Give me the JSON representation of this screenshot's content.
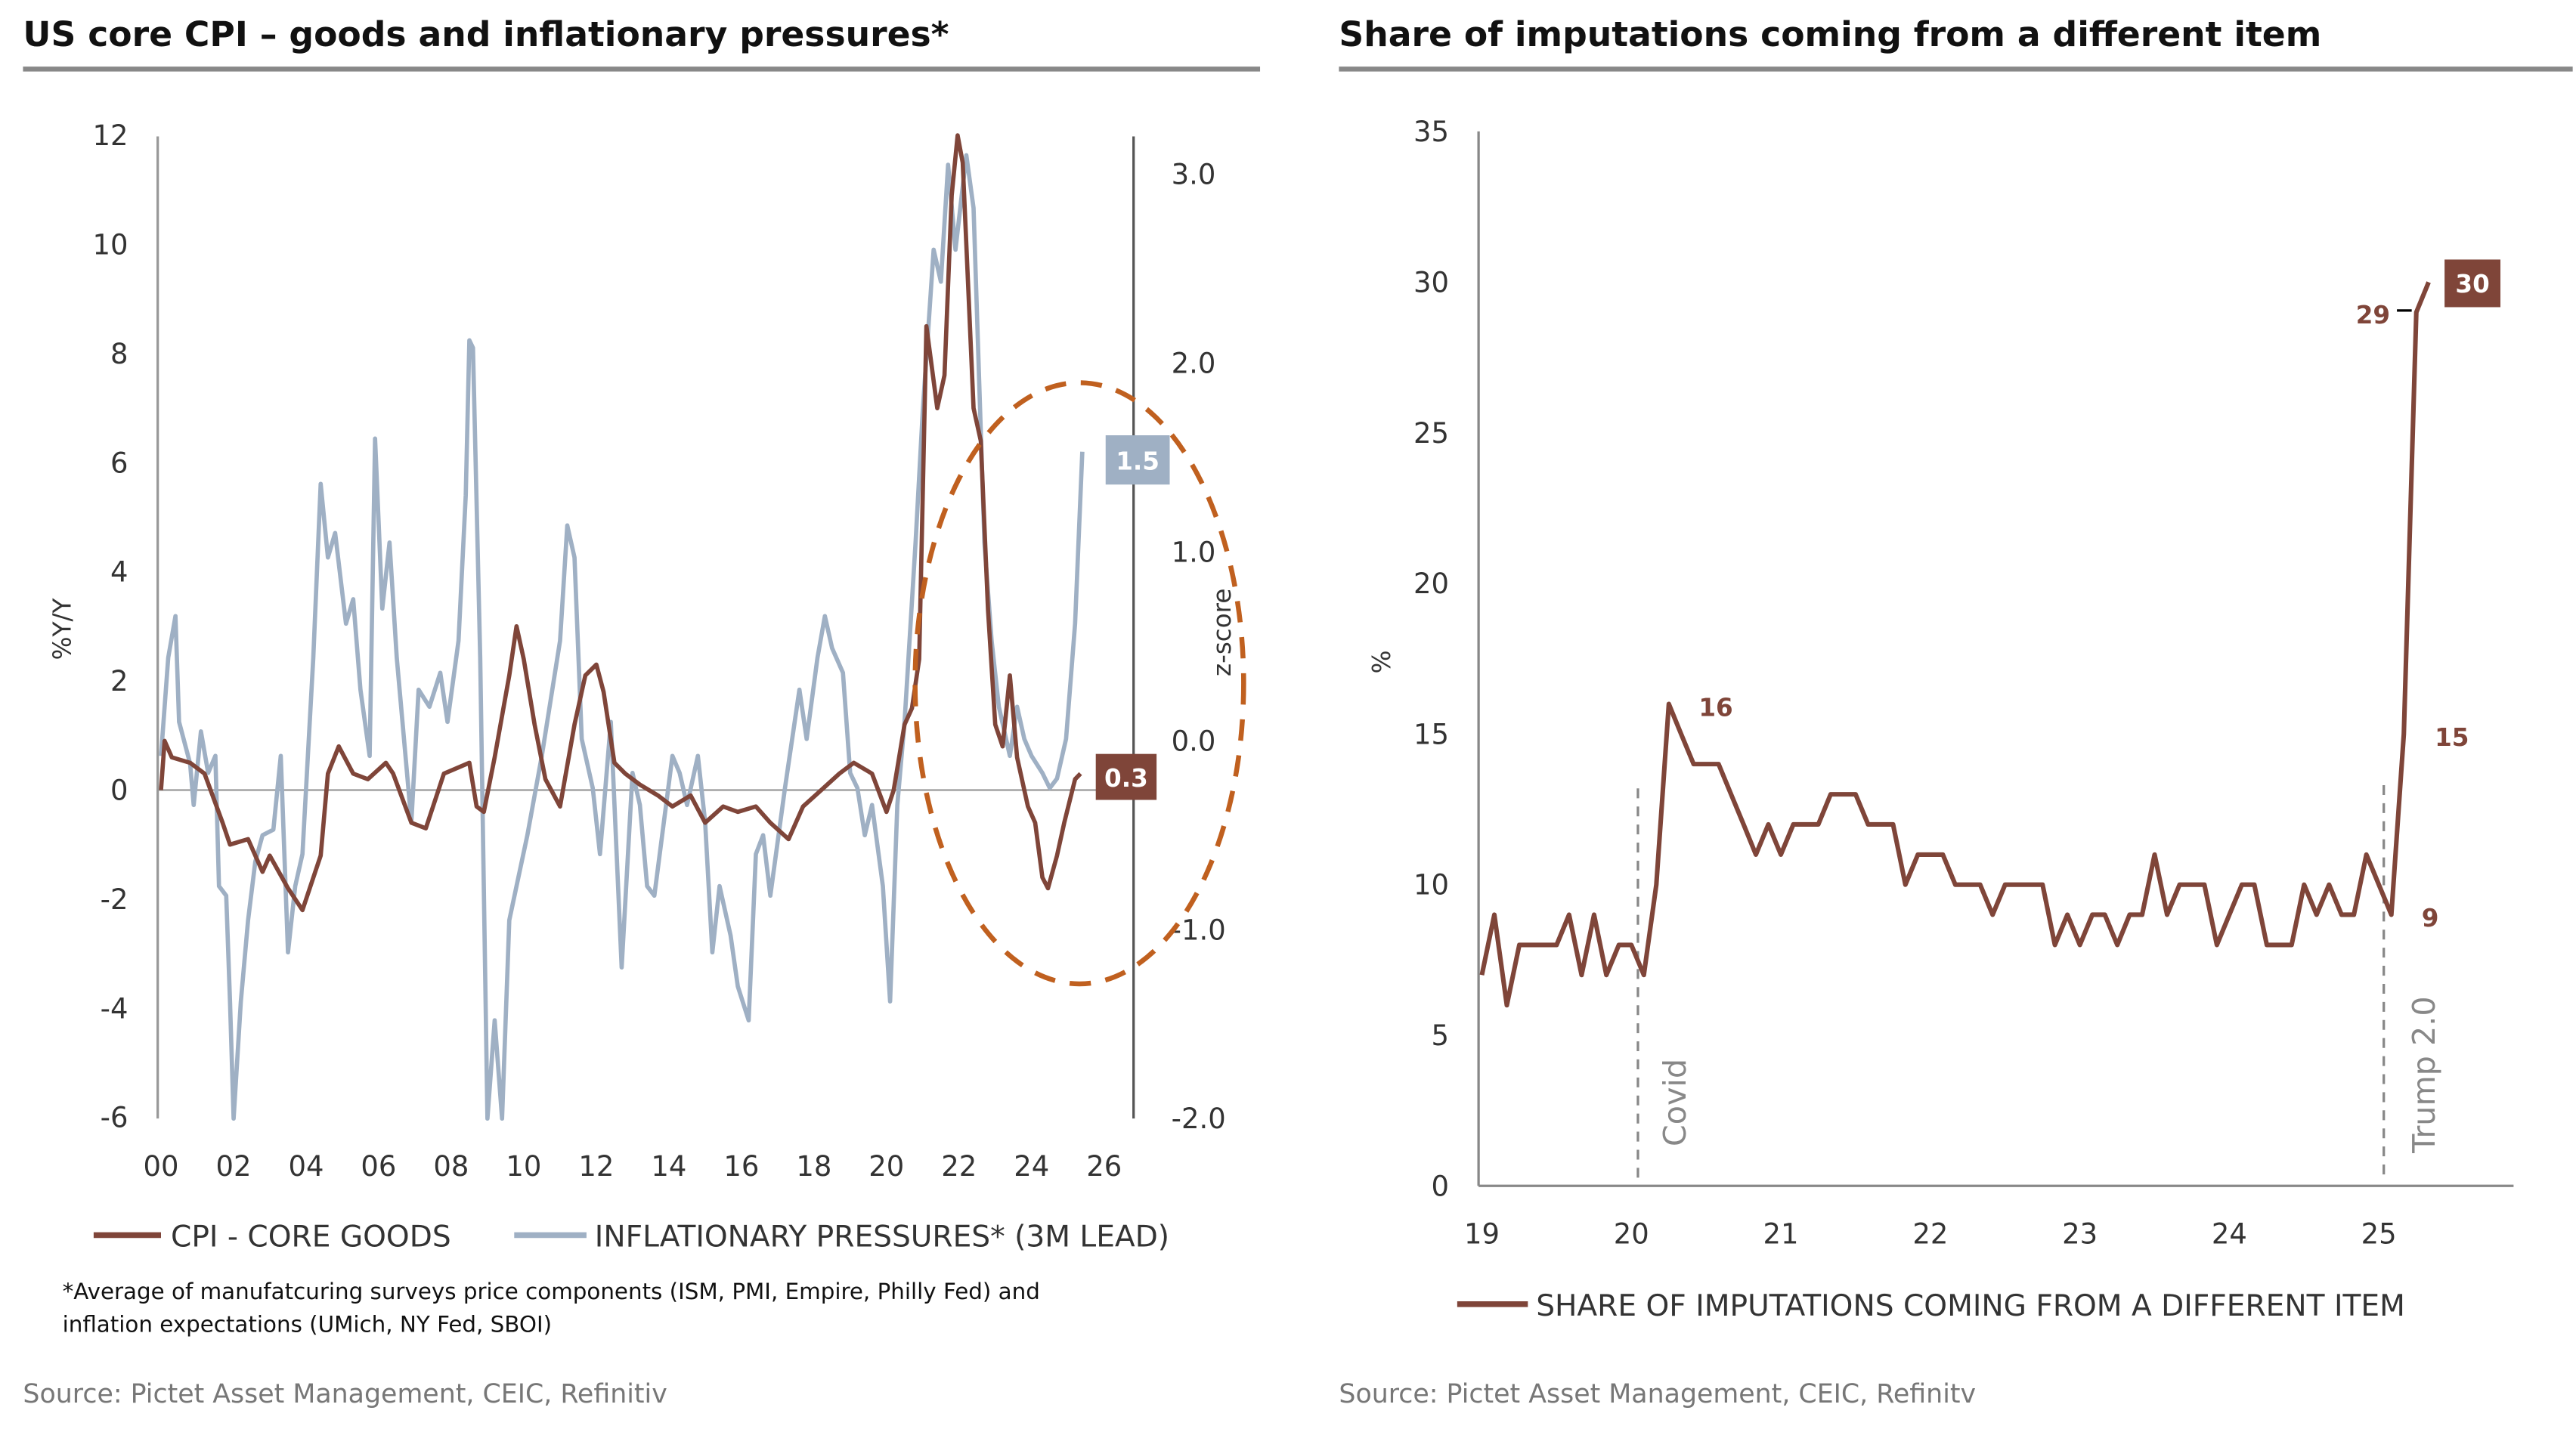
{
  "colors": {
    "cpi": "#7f4539",
    "pressures": "#9fb0c4",
    "highlight": "#c0601f",
    "axis": "#888888"
  },
  "chart_data": [
    {
      "type": "line",
      "title": "US core CPI – goods and inflationary pressures*",
      "ylabel": "%Y/Y",
      "y2label": "z-score",
      "xlim": [
        2000,
        2026.5
      ],
      "ylim": [
        -6,
        12
      ],
      "y2lim": [
        -2.0,
        3.2
      ],
      "xticks": [
        "00",
        "02",
        "04",
        "06",
        "08",
        "10",
        "12",
        "14",
        "16",
        "18",
        "20",
        "22",
        "24",
        "26"
      ],
      "yticks": [
        "12",
        "10",
        "8",
        "6",
        "4",
        "2",
        "0",
        "-2",
        "-4",
        "-6"
      ],
      "y2ticks": [
        "3.0",
        "2.0",
        "1.0",
        "0.0",
        "-1.0",
        "-2.0"
      ],
      "legend_position": "bottom",
      "series": [
        {
          "name": "CPI - CORE GOODS",
          "axis": "left",
          "last_label": "0.3",
          "points": [
            [
              2000.0,
              0
            ],
            [
              2000.1,
              0.9
            ],
            [
              2000.3,
              0.6
            ],
            [
              2000.8,
              0.5
            ],
            [
              2001.2,
              0.3
            ],
            [
              2001.7,
              -0.6
            ],
            [
              2001.9,
              -1
            ],
            [
              2002.4,
              -0.9
            ],
            [
              2002.8,
              -1.5
            ],
            [
              2003.0,
              -1.2
            ],
            [
              2003.5,
              -1.8
            ],
            [
              2003.9,
              -2.2
            ],
            [
              2004.4,
              -1.2
            ],
            [
              2004.6,
              0.3
            ],
            [
              2004.9,
              0.8
            ],
            [
              2005.3,
              0.3
            ],
            [
              2005.7,
              0.2
            ],
            [
              2006.2,
              0.5
            ],
            [
              2006.4,
              0.3
            ],
            [
              2006.9,
              -0.6
            ],
            [
              2007.3,
              -0.7
            ],
            [
              2007.8,
              0.3
            ],
            [
              2008.5,
              0.5
            ],
            [
              2008.7,
              -0.3
            ],
            [
              2008.9,
              -0.4
            ],
            [
              2009.2,
              0.6
            ],
            [
              2009.6,
              2.1
            ],
            [
              2009.8,
              3.0
            ],
            [
              2010.0,
              2.4
            ],
            [
              2010.3,
              1.2
            ],
            [
              2010.6,
              0.2
            ],
            [
              2011.0,
              -0.3
            ],
            [
              2011.4,
              1.2
            ],
            [
              2011.7,
              2.1
            ],
            [
              2012.0,
              2.3
            ],
            [
              2012.2,
              1.8
            ],
            [
              2012.5,
              0.5
            ],
            [
              2012.8,
              0.3
            ],
            [
              2013.2,
              0.1
            ],
            [
              2013.7,
              -0.1
            ],
            [
              2014.1,
              -0.3
            ],
            [
              2014.6,
              -0.1
            ],
            [
              2015.0,
              -0.6
            ],
            [
              2015.5,
              -0.3
            ],
            [
              2015.9,
              -0.4
            ],
            [
              2016.4,
              -0.3
            ],
            [
              2016.8,
              -0.6
            ],
            [
              2017.3,
              -0.9
            ],
            [
              2017.7,
              -0.3
            ],
            [
              2018.2,
              0
            ],
            [
              2018.7,
              0.3
            ],
            [
              2019.1,
              0.5
            ],
            [
              2019.6,
              0.3
            ],
            [
              2020.0,
              -0.4
            ],
            [
              2020.2,
              0
            ],
            [
              2020.5,
              1.2
            ],
            [
              2020.7,
              1.5
            ],
            [
              2020.9,
              2.4
            ],
            [
              2021.1,
              8.5
            ],
            [
              2021.4,
              7.0
            ],
            [
              2021.6,
              7.6
            ],
            [
              2021.8,
              10.9
            ],
            [
              2021.96,
              12
            ],
            [
              2022.1,
              11.5
            ],
            [
              2022.4,
              7.0
            ],
            [
              2022.6,
              6.4
            ],
            [
              2022.8,
              3.3
            ],
            [
              2023.0,
              1.2
            ],
            [
              2023.2,
              0.8
            ],
            [
              2023.4,
              2.1
            ],
            [
              2023.6,
              0.6
            ],
            [
              2023.9,
              -0.3
            ],
            [
              2024.1,
              -0.6
            ],
            [
              2024.3,
              -1.6
            ],
            [
              2024.45,
              -1.8
            ],
            [
              2024.7,
              -1.2
            ],
            [
              2024.9,
              -0.6
            ],
            [
              2025.2,
              0.2
            ],
            [
              2025.35,
              0.3
            ]
          ]
        },
        {
          "name": "INFLATIONARY PRESSURES* (3M LEAD)",
          "axis": "right",
          "last_label": "1.5",
          "points": [
            [
              2000.0,
              -0.08
            ],
            [
              2000.2,
              0.44
            ],
            [
              2000.4,
              0.66
            ],
            [
              2000.5,
              0.1
            ],
            [
              2000.8,
              -0.12
            ],
            [
              2000.9,
              -0.34
            ],
            [
              2001.1,
              0.05
            ],
            [
              2001.3,
              -0.17
            ],
            [
              2001.5,
              -0.08
            ],
            [
              2001.6,
              -0.77
            ],
            [
              2001.8,
              -0.82
            ],
            [
              2001.9,
              -1.38
            ],
            [
              2002.0,
              -2.0
            ],
            [
              2002.2,
              -1.38
            ],
            [
              2002.4,
              -0.95
            ],
            [
              2002.6,
              -0.64
            ],
            [
              2002.8,
              -0.5
            ],
            [
              2003.1,
              -0.47
            ],
            [
              2003.3,
              -0.08
            ],
            [
              2003.5,
              -1.12
            ],
            [
              2003.7,
              -0.77
            ],
            [
              2003.9,
              -0.6
            ],
            [
              2004.2,
              0.44
            ],
            [
              2004.4,
              1.36
            ],
            [
              2004.6,
              0.97
            ],
            [
              2004.8,
              1.1
            ],
            [
              2005.1,
              0.62
            ],
            [
              2005.3,
              0.75
            ],
            [
              2005.5,
              0.27
            ],
            [
              2005.75,
              -0.08
            ],
            [
              2005.9,
              1.6
            ],
            [
              2006.1,
              0.7
            ],
            [
              2006.3,
              1.05
            ],
            [
              2006.5,
              0.44
            ],
            [
              2006.9,
              -0.43
            ],
            [
              2007.1,
              0.27
            ],
            [
              2007.4,
              0.18
            ],
            [
              2007.7,
              0.36
            ],
            [
              2007.9,
              0.1
            ],
            [
              2008.2,
              0.53
            ],
            [
              2008.4,
              1.3
            ],
            [
              2008.5,
              2.12
            ],
            [
              2008.6,
              2.08
            ],
            [
              2008.8,
              0.44
            ],
            [
              2009.0,
              -2.0
            ],
            [
              2009.2,
              -1.48
            ],
            [
              2009.4,
              -2.0
            ],
            [
              2009.6,
              -0.95
            ],
            [
              2009.8,
              -0.77
            ],
            [
              2010.1,
              -0.5
            ],
            [
              2010.5,
              -0.08
            ],
            [
              2011.0,
              0.53
            ],
            [
              2011.2,
              1.14
            ],
            [
              2011.4,
              0.97
            ],
            [
              2011.6,
              0.01
            ],
            [
              2011.9,
              -0.25
            ],
            [
              2012.1,
              -0.6
            ],
            [
              2012.4,
              0.1
            ],
            [
              2012.7,
              -1.2
            ],
            [
              2013.0,
              -0.17
            ],
            [
              2013.2,
              -0.34
            ],
            [
              2013.4,
              -0.77
            ],
            [
              2013.6,
              -0.82
            ],
            [
              2014.1,
              -0.08
            ],
            [
              2014.3,
              -0.17
            ],
            [
              2014.5,
              -0.34
            ],
            [
              2014.8,
              -0.08
            ],
            [
              2015.0,
              -0.43
            ],
            [
              2015.2,
              -1.12
            ],
            [
              2015.4,
              -0.77
            ],
            [
              2015.7,
              -1.03
            ],
            [
              2015.9,
              -1.3
            ],
            [
              2016.2,
              -1.48
            ],
            [
              2016.4,
              -0.6
            ],
            [
              2016.6,
              -0.5
            ],
            [
              2016.8,
              -0.82
            ],
            [
              2017.2,
              -0.25
            ],
            [
              2017.6,
              0.27
            ],
            [
              2017.8,
              0.01
            ],
            [
              2018.1,
              0.44
            ],
            [
              2018.3,
              0.66
            ],
            [
              2018.5,
              0.49
            ],
            [
              2018.8,
              0.36
            ],
            [
              2019.0,
              -0.17
            ],
            [
              2019.2,
              -0.25
            ],
            [
              2019.4,
              -0.5
            ],
            [
              2019.6,
              -0.34
            ],
            [
              2019.9,
              -0.77
            ],
            [
              2020.1,
              -1.38
            ],
            [
              2020.3,
              -0.34
            ],
            [
              2020.5,
              0.1
            ],
            [
              2020.8,
              1.05
            ],
            [
              2021.0,
              1.75
            ],
            [
              2021.3,
              2.6
            ],
            [
              2021.5,
              2.43
            ],
            [
              2021.7,
              3.05
            ],
            [
              2021.9,
              2.6
            ],
            [
              2022.2,
              3.1
            ],
            [
              2022.4,
              2.82
            ],
            [
              2022.7,
              1.05
            ],
            [
              2022.9,
              0.53
            ],
            [
              2023.1,
              0.18
            ],
            [
              2023.4,
              -0.08
            ],
            [
              2023.6,
              0.18
            ],
            [
              2023.8,
              0.01
            ],
            [
              2024.0,
              -0.08
            ],
            [
              2024.3,
              -0.17
            ],
            [
              2024.5,
              -0.25
            ],
            [
              2024.7,
              -0.2
            ],
            [
              2024.95,
              0.01
            ],
            [
              2025.2,
              0.62
            ],
            [
              2025.4,
              1.53
            ]
          ]
        }
      ],
      "legend": [
        "CPI - CORE GOODS",
        "INFLATIONARY PRESSURES* (3M LEAD)"
      ],
      "footnote": [
        "*Average of manufatcuring surveys price components (ISM, PMI, Empire, Philly Fed) and",
        "inflation expectations (UMich, NY Fed, SBOI)"
      ],
      "source": "Source: Pictet Asset Management, CEIC, Refinitiv"
    },
    {
      "type": "line",
      "title": "Share of imputations coming from a different item",
      "ylabel": "%",
      "ylim": [
        0,
        35
      ],
      "yticks": [
        "35",
        "30",
        "25",
        "20",
        "15",
        "10",
        "5",
        "0"
      ],
      "xticks": [
        "19",
        "20",
        "21",
        "22",
        "23",
        "24",
        "25"
      ],
      "x_start": "2019-01",
      "x_frequency": "monthly",
      "grid": false,
      "legend_position": "bottom",
      "series": [
        {
          "name": "SHARE OF IMPUTATIONS COMING FROM A DIFFERENT ITEM",
          "values": [
            7,
            9,
            6,
            8,
            8,
            8,
            8,
            9,
            7,
            9,
            7,
            8,
            8,
            7,
            10,
            16,
            15,
            14,
            14,
            14,
            13,
            12,
            11,
            12,
            11,
            12,
            12,
            12,
            13,
            13,
            13,
            12,
            12,
            12,
            10,
            11,
            11,
            11,
            10,
            10,
            10,
            9,
            10,
            10,
            10,
            10,
            8,
            9,
            8,
            9,
            9,
            8,
            9,
            9,
            11,
            9,
            10,
            10,
            10,
            8,
            9,
            10,
            10,
            8,
            8,
            8,
            10,
            9,
            10,
            9,
            9,
            11,
            10,
            9,
            15,
            29,
            30
          ]
        }
      ],
      "annotations": {
        "peak_covid": "16",
        "mar25": "15",
        "feb25": "9",
        "apr25": "29",
        "last": "30"
      },
      "events": [
        {
          "label": "Covid",
          "date": 2020.1
        },
        {
          "label": "Trump 2.0",
          "date": 2025.05
        }
      ],
      "legend": [
        "SHARE OF IMPUTATIONS COMING FROM A DIFFERENT ITEM"
      ],
      "source": "Source: Pictet Asset Management, CEIC, Refinitv"
    }
  ]
}
